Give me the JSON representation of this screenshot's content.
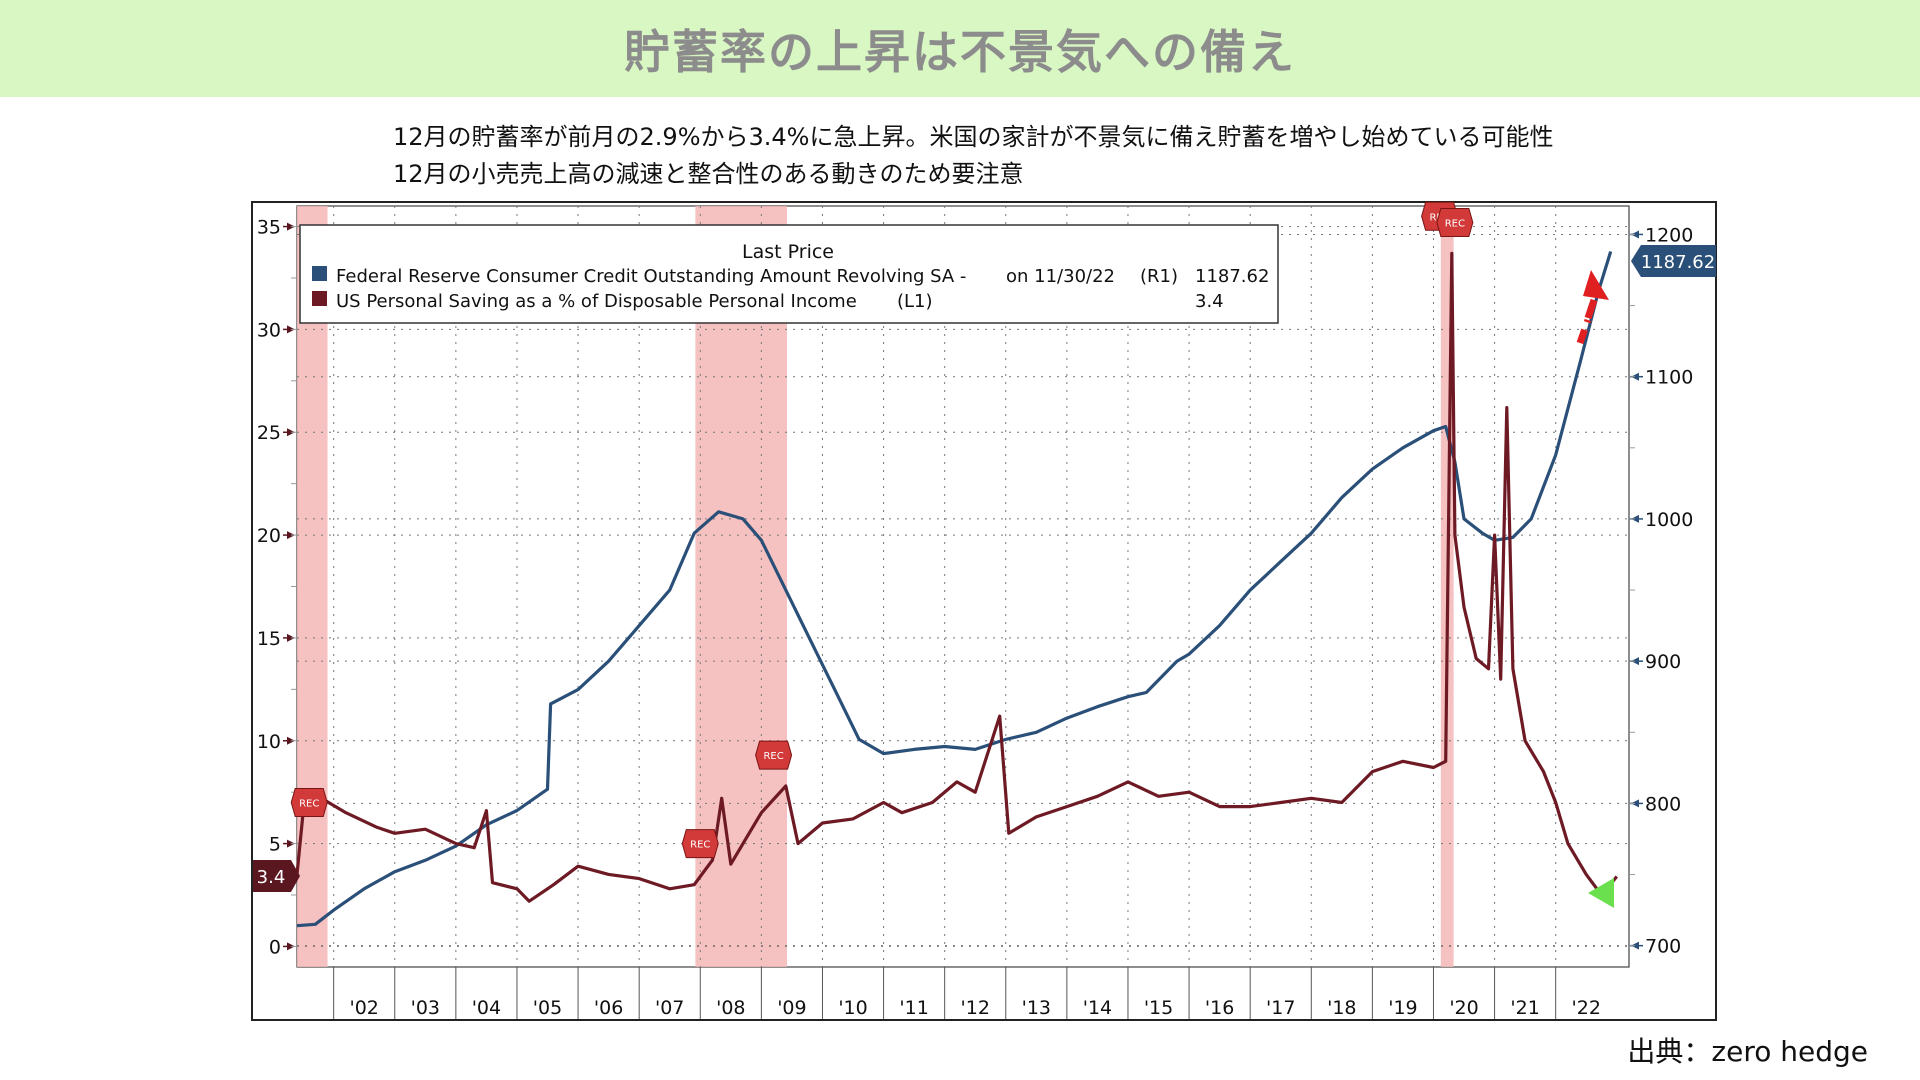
{
  "header": {
    "title": "貯蓄率の上昇は不景気への備え"
  },
  "subtitle_lines": [
    "12月の貯蓄率が前月の2.9%から3.4%に急上昇。米国の家計が不景気に備え貯蓄を増やし始めている可能性",
    "12月の小売売上高の減速と整合性のある動きのため要注意"
  ],
  "source": "出典：zero hedge",
  "chart_data": {
    "type": "line",
    "legend": {
      "title": "Last Price",
      "entries": [
        {
          "label": "Federal Reserve Consumer Credit Outstanding Amount Revolving SA -",
          "date": "on 11/30/22",
          "axis": "(R1)",
          "value": "1187.62",
          "color": "#2a4f78"
        },
        {
          "label": "US Personal Saving as a % of Disposable Personal Income",
          "date": "",
          "axis": "(L1)",
          "value": "3.4",
          "color": "#6e1a24"
        }
      ],
      "position": "top-left"
    },
    "x_ticks": [
      "'02",
      "'03",
      "'04",
      "'05",
      "'06",
      "'07",
      "'08",
      "'09",
      "'10",
      "'11",
      "'12",
      "'13",
      "'14",
      "'15",
      "'16",
      "'17",
      "'18",
      "'19",
      "'20",
      "'21",
      "'22"
    ],
    "x_range": [
      2001.4,
      2023.2
    ],
    "left_axis": {
      "range": [
        -1,
        36
      ],
      "ticks": [
        0,
        5,
        10,
        15,
        20,
        25,
        30,
        35
      ],
      "last_value_label": "3.4"
    },
    "right_axis": {
      "range": [
        685,
        1220
      ],
      "ticks": [
        700,
        800,
        900,
        1000,
        1100,
        1200
      ],
      "last_value_label": "1187.62"
    },
    "recessions": [
      {
        "start": 2001.2,
        "end": 2001.9
      },
      {
        "start": 2007.92,
        "end": 2009.42
      },
      {
        "start": 2020.12,
        "end": 2020.33
      }
    ],
    "rec_markers": [
      {
        "x": 2001.6,
        "y": 7.0,
        "text": "REC"
      },
      {
        "x": 2008.0,
        "y": 5.0,
        "text": "REC"
      },
      {
        "x": 2009.2,
        "y": 9.3,
        "text": "REC"
      },
      {
        "x": 2020.1,
        "y": 35.5,
        "text": "REC"
      },
      {
        "x": 2020.35,
        "y": 35.2,
        "text": "REC"
      }
    ],
    "series": [
      {
        "name": "Federal Reserve Consumer Credit Outstanding Amount Revolving SA",
        "axis": "right",
        "color": "#2a4f78",
        "points": [
          [
            2001.4,
            714
          ],
          [
            2001.7,
            715
          ],
          [
            2002.0,
            725
          ],
          [
            2002.5,
            740
          ],
          [
            2003.0,
            752
          ],
          [
            2003.5,
            760
          ],
          [
            2004.0,
            770
          ],
          [
            2004.5,
            785
          ],
          [
            2005.0,
            795
          ],
          [
            2005.5,
            810
          ],
          [
            2005.55,
            870
          ],
          [
            2006.0,
            880
          ],
          [
            2006.5,
            900
          ],
          [
            2007.0,
            925
          ],
          [
            2007.5,
            950
          ],
          [
            2007.9,
            990
          ],
          [
            2008.3,
            1005
          ],
          [
            2008.7,
            1000
          ],
          [
            2009.0,
            985
          ],
          [
            2009.4,
            950
          ],
          [
            2009.8,
            915
          ],
          [
            2010.2,
            880
          ],
          [
            2010.6,
            845
          ],
          [
            2011.0,
            835
          ],
          [
            2011.5,
            838
          ],
          [
            2012.0,
            840
          ],
          [
            2012.5,
            838
          ],
          [
            2013.0,
            845
          ],
          [
            2013.5,
            850
          ],
          [
            2014.0,
            860
          ],
          [
            2014.5,
            868
          ],
          [
            2015.0,
            875
          ],
          [
            2015.3,
            878
          ],
          [
            2015.8,
            900
          ],
          [
            2016.0,
            905
          ],
          [
            2016.5,
            925
          ],
          [
            2017.0,
            950
          ],
          [
            2017.5,
            970
          ],
          [
            2018.0,
            990
          ],
          [
            2018.5,
            1015
          ],
          [
            2019.0,
            1035
          ],
          [
            2019.5,
            1050
          ],
          [
            2020.0,
            1062
          ],
          [
            2020.2,
            1065
          ],
          [
            2020.35,
            1040
          ],
          [
            2020.5,
            1000
          ],
          [
            2020.8,
            990
          ],
          [
            2021.0,
            985
          ],
          [
            2021.3,
            987
          ],
          [
            2021.6,
            1000
          ],
          [
            2022.0,
            1045
          ],
          [
            2022.4,
            1110
          ],
          [
            2022.7,
            1160
          ],
          [
            2022.9,
            1188
          ]
        ]
      },
      {
        "name": "US Personal Saving as a % of Disposable Personal Income",
        "axis": "left",
        "color": "#6e1a24",
        "points": [
          [
            2001.4,
            3.5
          ],
          [
            2001.5,
            6.5
          ],
          [
            2001.8,
            7.2
          ],
          [
            2002.2,
            6.5
          ],
          [
            2002.7,
            5.8
          ],
          [
            2003.0,
            5.5
          ],
          [
            2003.5,
            5.7
          ],
          [
            2004.0,
            5.0
          ],
          [
            2004.3,
            4.8
          ],
          [
            2004.5,
            6.6
          ],
          [
            2004.6,
            3.1
          ],
          [
            2005.0,
            2.8
          ],
          [
            2005.2,
            2.2
          ],
          [
            2005.6,
            3.0
          ],
          [
            2006.0,
            3.9
          ],
          [
            2006.5,
            3.5
          ],
          [
            2007.0,
            3.3
          ],
          [
            2007.5,
            2.8
          ],
          [
            2007.9,
            3.0
          ],
          [
            2008.2,
            4.2
          ],
          [
            2008.35,
            7.2
          ],
          [
            2008.5,
            4.0
          ],
          [
            2008.8,
            5.5
          ],
          [
            2009.0,
            6.5
          ],
          [
            2009.4,
            7.8
          ],
          [
            2009.6,
            5.0
          ],
          [
            2010.0,
            6.0
          ],
          [
            2010.5,
            6.2
          ],
          [
            2011.0,
            7.0
          ],
          [
            2011.3,
            6.5
          ],
          [
            2011.8,
            7.0
          ],
          [
            2012.2,
            8.0
          ],
          [
            2012.5,
            7.5
          ],
          [
            2012.9,
            11.2
          ],
          [
            2013.05,
            5.5
          ],
          [
            2013.5,
            6.3
          ],
          [
            2014.0,
            6.8
          ],
          [
            2014.5,
            7.3
          ],
          [
            2015.0,
            8.0
          ],
          [
            2015.5,
            7.3
          ],
          [
            2016.0,
            7.5
          ],
          [
            2016.5,
            6.8
          ],
          [
            2017.0,
            6.8
          ],
          [
            2017.5,
            7.0
          ],
          [
            2018.0,
            7.2
          ],
          [
            2018.5,
            7.0
          ],
          [
            2019.0,
            8.5
          ],
          [
            2019.5,
            9.0
          ],
          [
            2020.0,
            8.7
          ],
          [
            2020.2,
            9.0
          ],
          [
            2020.3,
            33.7
          ],
          [
            2020.35,
            20.0
          ],
          [
            2020.5,
            16.5
          ],
          [
            2020.7,
            14.0
          ],
          [
            2020.9,
            13.5
          ],
          [
            2021.0,
            20.0
          ],
          [
            2021.1,
            13.0
          ],
          [
            2021.2,
            26.2
          ],
          [
            2021.3,
            13.5
          ],
          [
            2021.5,
            10.0
          ],
          [
            2021.8,
            8.5
          ],
          [
            2022.0,
            7.0
          ],
          [
            2022.2,
            5.0
          ],
          [
            2022.5,
            3.5
          ],
          [
            2022.75,
            2.5
          ],
          [
            2023.0,
            3.4
          ]
        ]
      }
    ]
  }
}
